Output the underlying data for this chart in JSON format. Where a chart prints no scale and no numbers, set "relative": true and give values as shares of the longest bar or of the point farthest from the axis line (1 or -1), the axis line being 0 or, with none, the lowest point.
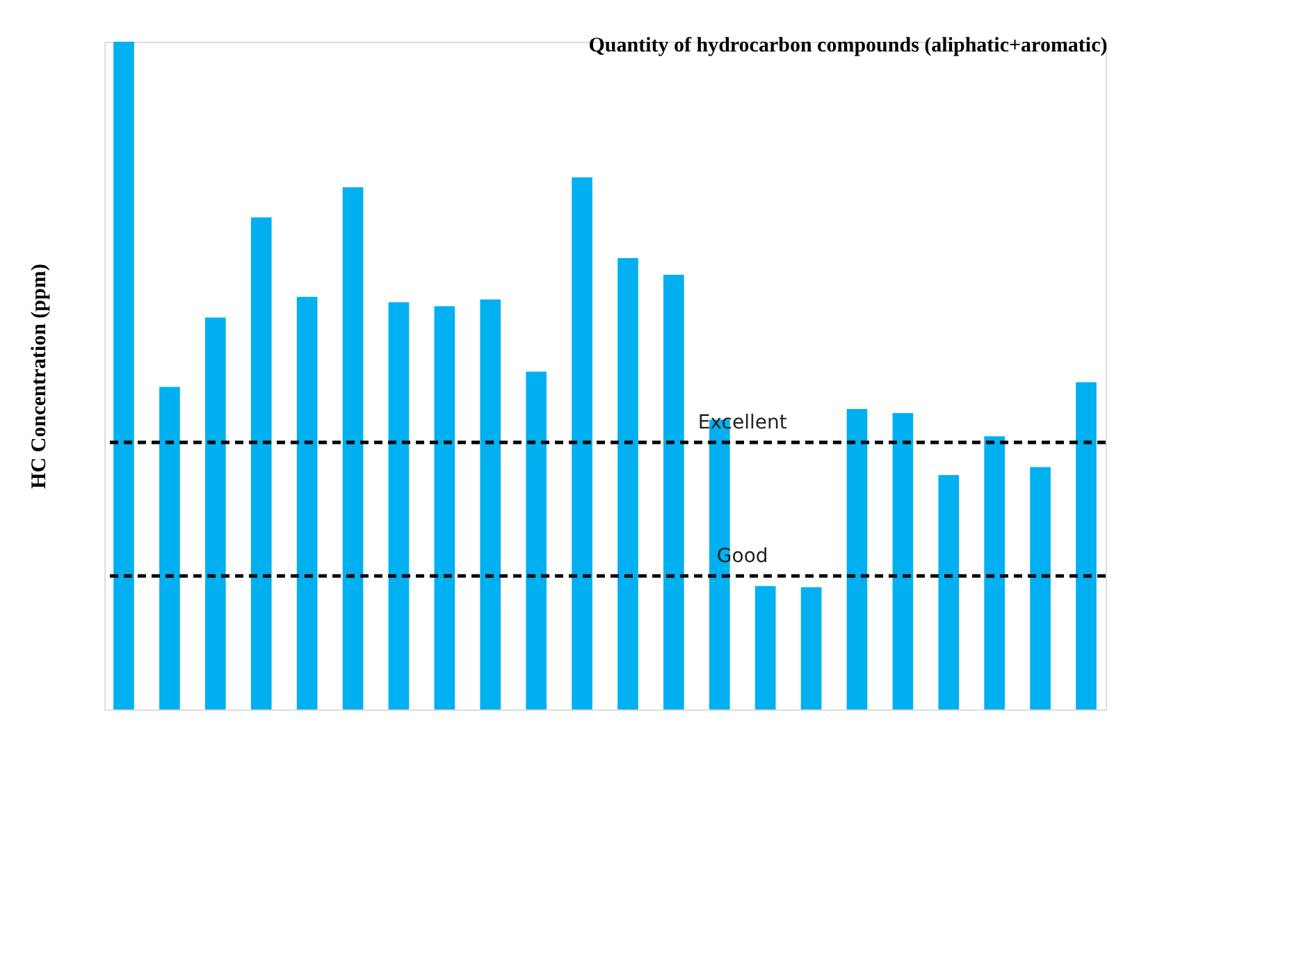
{
  "chart_data": {
    "type": "bar",
    "title": "Quantity of hydrocarbon compounds (aliphatic+aromatic)",
    "ylabel": "HC Concentration  (ppm)",
    "relative": true,
    "categories": [
      null,
      null,
      null,
      null,
      null,
      null,
      null,
      null,
      null,
      null,
      null,
      null,
      null,
      null,
      null,
      null,
      null,
      null,
      null,
      null,
      null,
      null
    ],
    "values": [
      1,
      0.483,
      0.587,
      0.737,
      0.618,
      0.782,
      0.61,
      0.604,
      0.614,
      0.506,
      0.797,
      0.676,
      0.651,
      0.434,
      0.185,
      0.183,
      0.45,
      0.444,
      0.351,
      0.409,
      0.363,
      0.49
    ],
    "color": "#00b0f0",
    "ref_lines": [
      {
        "axis": "y",
        "value": 0.4,
        "label": "Excellent",
        "color": "#000000",
        "line_style": "dashed"
      },
      {
        "axis": "y",
        "value": 0.2,
        "label": "Good",
        "color": "#000000",
        "line_style": "dashed"
      }
    ],
    "grid": false
  }
}
